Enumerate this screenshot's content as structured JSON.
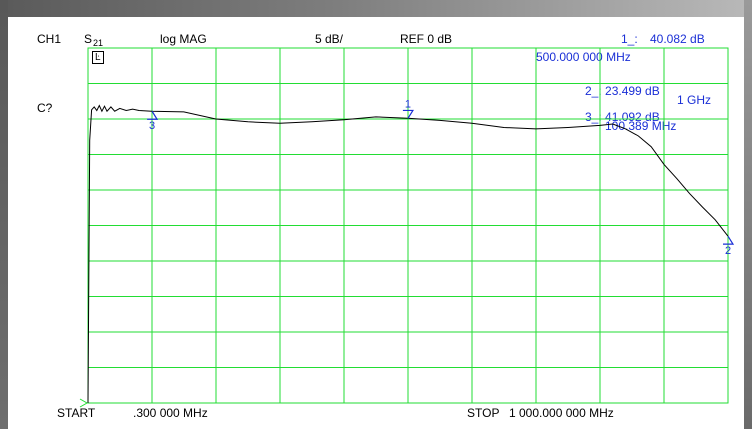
{
  "header": {
    "channel": "CH1",
    "param_main": "S",
    "param_sub": "21",
    "format": "log MAG",
    "scale": "5 dB/",
    "reference": "REF 0 dB",
    "marker_readout_value": "40.082 dB",
    "marker_readout_freq": "500.000 000 MHz"
  },
  "side_labels": {
    "cor_icon": "Ŀ",
    "cal_status": "C?"
  },
  "markers": [
    {
      "id": "1",
      "label": "1",
      "readout": "1_: 40.082 dB",
      "freq": "500.000 000 MHz",
      "x_mhz": 500,
      "y_db": 40.082
    },
    {
      "id": "2",
      "label": "2",
      "readout": "2_: 23.499 dB",
      "freq": "1 GHz",
      "x_mhz": 1000,
      "y_db": 23.499
    },
    {
      "id": "3",
      "label": "3",
      "readout": "3_: 41.092 dB",
      "freq": "100.389 MHz",
      "x_mhz": 100.389,
      "y_db": 41.092
    }
  ],
  "footer": {
    "start_label": "START",
    "start_value": ".300 000 MHz",
    "stop_label": "STOP",
    "stop_value": "1 000.000 000 MHz"
  },
  "colors": {
    "grid": "#22dd33",
    "trace": "#000000",
    "text": "#000000",
    "marker": "#1a2fd6"
  },
  "chart_data": {
    "type": "line",
    "x_range_mhz": [
      0.3,
      1000
    ],
    "y_range_db": [
      0,
      50
    ],
    "grid": true,
    "series": [
      {
        "x_mhz": [
          0.3,
          3,
          6,
          10,
          14,
          18,
          22,
          26,
          30,
          36,
          42,
          50,
          60,
          70,
          80,
          100,
          150,
          200,
          250,
          300,
          350,
          400,
          450,
          500,
          550,
          600,
          650,
          700,
          750,
          800,
          820,
          840,
          860,
          880,
          900,
          920,
          940,
          960,
          980,
          1000
        ],
        "y_db": [
          0,
          37,
          41.3,
          41.7,
          41.2,
          41.9,
          41.1,
          41.8,
          41.1,
          41.7,
          41.1,
          41.5,
          41.2,
          41.4,
          41.2,
          41.1,
          41.0,
          40.0,
          39.6,
          39.4,
          39.6,
          39.9,
          40.3,
          40.1,
          39.8,
          39.4,
          38.8,
          38.6,
          38.8,
          39.1,
          39.3,
          38.6,
          37.6,
          36.1,
          33.6,
          31.6,
          29.5,
          27.6,
          25.8,
          23.5
        ]
      }
    ]
  }
}
